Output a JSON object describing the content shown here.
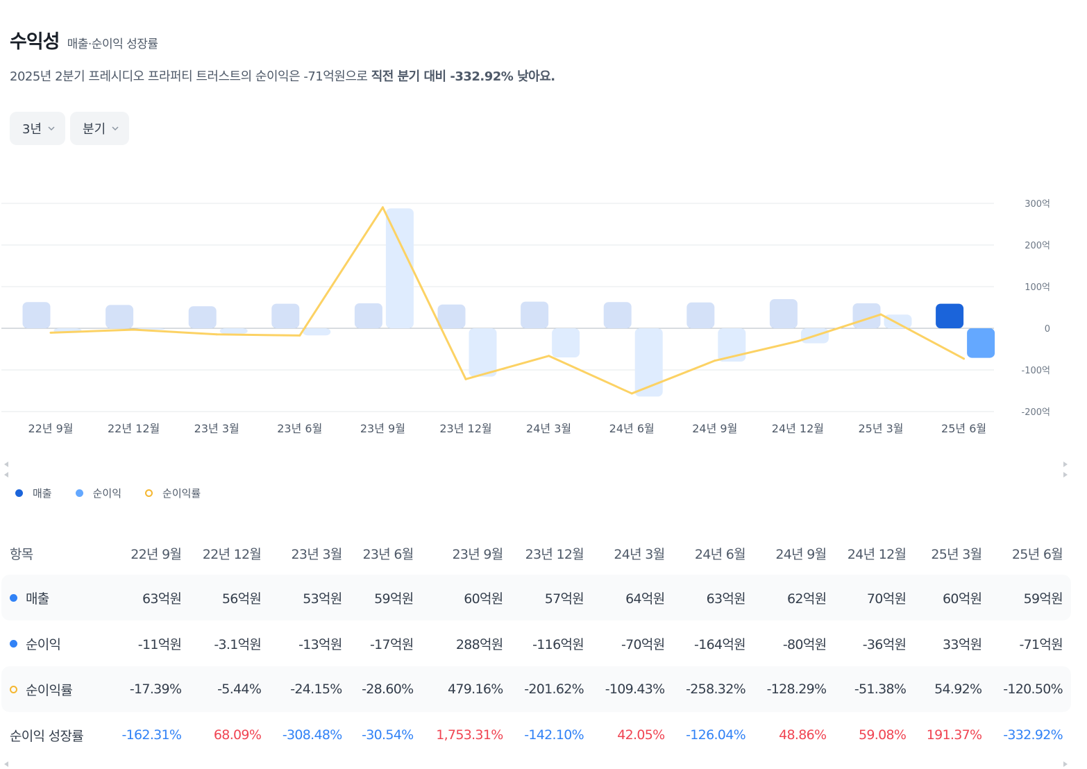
{
  "header": {
    "title": "수익성",
    "subtitle": "매출·순이익 성장률",
    "summary_plain": "2025년 2분기 프레시디오 프라퍼티 트러스트의 순이익은 -71억원으로 ",
    "summary_bold": "직전 분기 대비 -332.92% 낮아요."
  },
  "filters": {
    "period": "3년",
    "interval": "분기"
  },
  "legend": {
    "revenue": "매출",
    "net_income": "순이익",
    "net_margin": "순이익률"
  },
  "colors": {
    "revenue_bar": "#d4e1f8",
    "revenue_bar_active": "#1b64da",
    "net_bar": "#dfecfe",
    "net_bar_active": "#64a8ff",
    "margin_line": "#fcd264",
    "grid": "#e5e8eb",
    "zero_line": "#b0b8c1",
    "positive": "#f04452",
    "negative": "#3182f6"
  },
  "chart_data": {
    "type": "bar",
    "title": "수익성",
    "categories": [
      "22년 9월",
      "22년 12월",
      "23년 3월",
      "23년 6월",
      "23년 9월",
      "23년 12월",
      "24년 3월",
      "24년 6월",
      "24년 9월",
      "24년 12월",
      "25년 3월",
      "25년 6월"
    ],
    "series": [
      {
        "name": "매출",
        "unit": "억원",
        "values": [
          63,
          56,
          53,
          59,
          60,
          57,
          64,
          63,
          62,
          70,
          60,
          59
        ]
      },
      {
        "name": "순이익",
        "unit": "억원",
        "values": [
          -11,
          -3.1,
          -13,
          -17,
          288,
          -116,
          -70,
          -164,
          -80,
          -36,
          33,
          -71
        ]
      },
      {
        "name": "순이익률",
        "type": "line",
        "unit": "%",
        "values": [
          -17.39,
          -5.44,
          -24.15,
          -28.6,
          479.16,
          -201.62,
          -109.43,
          -258.32,
          -128.29,
          -51.38,
          54.92,
          -120.5
        ]
      }
    ],
    "y_axis": {
      "position": "right",
      "ylim": [
        -200,
        300
      ],
      "ticks": [
        300,
        200,
        100,
        0,
        -100,
        -200
      ],
      "tick_labels": [
        "300억",
        "200억",
        "100억",
        "0",
        "-100억",
        "-200억"
      ]
    },
    "line_scale_note": "순이익률 line plotted on secondary scale",
    "highlighted_category": "25년 6월"
  },
  "table": {
    "header_label": "항목",
    "columns": [
      "22년 9월",
      "22년 12월",
      "23년 3월",
      "23년 6월",
      "23년 9월",
      "23년 12월",
      "24년 3월",
      "24년 6월",
      "24년 9월",
      "24년 12월",
      "25년 3월",
      "25년 6월"
    ],
    "rows": [
      {
        "label": "매출",
        "marker": "dot",
        "values": [
          "63억원",
          "56억원",
          "53억원",
          "59억원",
          "60억원",
          "57억원",
          "64억원",
          "63억원",
          "62억원",
          "70억원",
          "60억원",
          "59억원"
        ]
      },
      {
        "label": "순이익",
        "marker": "dot",
        "values": [
          "-11억원",
          "-3.1억원",
          "-13억원",
          "-17억원",
          "288억원",
          "-116억원",
          "-70억원",
          "-164억원",
          "-80억원",
          "-36억원",
          "33억원",
          "-71억원"
        ]
      },
      {
        "label": "순이익률",
        "marker": "ring",
        "values": [
          "-17.39%",
          "-5.44%",
          "-24.15%",
          "-28.60%",
          "479.16%",
          "-201.62%",
          "-109.43%",
          "-258.32%",
          "-128.29%",
          "-51.38%",
          "54.92%",
          "-120.50%"
        ]
      },
      {
        "label": "순이익 성장률",
        "marker": "none",
        "values": [
          "-162.31%",
          "68.09%",
          "-308.48%",
          "-30.54%",
          "1,753.31%",
          "-142.10%",
          "42.05%",
          "-126.04%",
          "48.86%",
          "59.08%",
          "191.37%",
          "-332.92%"
        ]
      }
    ]
  }
}
